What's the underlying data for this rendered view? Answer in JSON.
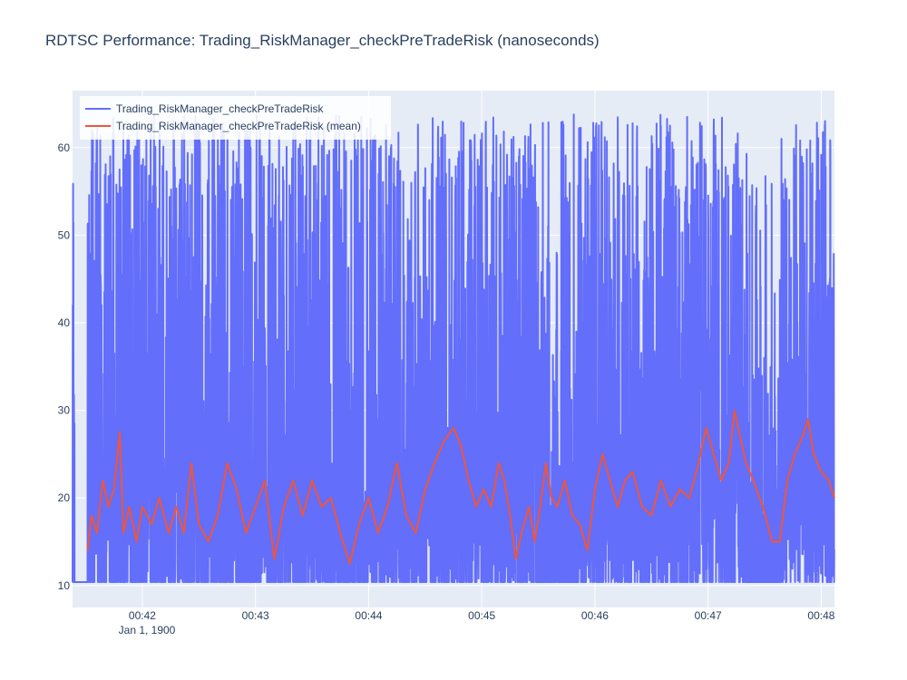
{
  "chart_data": {
    "type": "line",
    "title": "RDTSC Performance: Trading_RiskManager_checkPreTradeRisk (nanoseconds)",
    "xlabel": "",
    "ylabel": "",
    "x_range": [
      "00:41:23",
      "00:48:07"
    ],
    "x_ticks": [
      "00:42",
      "00:43",
      "00:44",
      "00:45",
      "00:46",
      "00:47",
      "00:48"
    ],
    "x_date_label": "Jan 1, 1900",
    "ylim": [
      7.5,
      66.5
    ],
    "y_ticks": [
      10,
      20,
      30,
      40,
      50,
      60
    ],
    "grid": true,
    "legend_position": "top-left",
    "series": [
      {
        "name": "Trading_RiskManager_checkPreTradeRisk",
        "color": "#636efa",
        "style": "noisy raw samples",
        "baseline": 10.4,
        "peak_levels": [
          22,
          26,
          30,
          34,
          37,
          41,
          45,
          48,
          52,
          56,
          58,
          61,
          63.8
        ],
        "bursts": [
          {
            "start": "00:41:23",
            "end": "00:41:24",
            "intensity": 0.6
          },
          {
            "start": "00:41:31",
            "end": "00:45:29",
            "intensity": 0.8
          },
          {
            "start": "00:45:29",
            "end": "00:45:54",
            "intensity": 0.5
          },
          {
            "start": "00:45:54",
            "end": "00:47:21",
            "intensity": 0.85
          },
          {
            "start": "00:47:21",
            "end": "00:47:38",
            "intensity": 0.35
          },
          {
            "start": "00:47:38",
            "end": "00:48:07",
            "intensity": 0.9
          }
        ]
      },
      {
        "name": "Trading_RiskManager_checkPreTradeRisk (mean)",
        "color": "#ef553b",
        "style": "rolling mean",
        "points": [
          [
            "00:41:31",
            14
          ],
          [
            "00:41:33",
            18
          ],
          [
            "00:41:36",
            16
          ],
          [
            "00:41:39",
            22
          ],
          [
            "00:41:42",
            19
          ],
          [
            "00:41:45",
            21
          ],
          [
            "00:41:48",
            27.5
          ],
          [
            "00:41:50",
            16
          ],
          [
            "00:41:53",
            19
          ],
          [
            "00:41:57",
            15
          ],
          [
            "00:42:00",
            19
          ],
          [
            "00:42:05",
            17
          ],
          [
            "00:42:09",
            20
          ],
          [
            "00:42:14",
            16
          ],
          [
            "00:42:18",
            19
          ],
          [
            "00:42:22",
            16
          ],
          [
            "00:42:26",
            24
          ],
          [
            "00:42:30",
            17
          ],
          [
            "00:42:35",
            15
          ],
          [
            "00:42:40",
            18
          ],
          [
            "00:42:45",
            24
          ],
          [
            "00:42:50",
            21
          ],
          [
            "00:42:55",
            16
          ],
          [
            "00:43:00",
            19
          ],
          [
            "00:43:05",
            22
          ],
          [
            "00:43:10",
            13
          ],
          [
            "00:43:15",
            19
          ],
          [
            "00:43:20",
            22
          ],
          [
            "00:43:25",
            18
          ],
          [
            "00:43:30",
            22
          ],
          [
            "00:43:35",
            19
          ],
          [
            "00:43:40",
            20
          ],
          [
            "00:43:45",
            16
          ],
          [
            "00:43:50",
            12.5
          ],
          [
            "00:43:55",
            17
          ],
          [
            "00:44:00",
            20
          ],
          [
            "00:44:05",
            16
          ],
          [
            "00:44:10",
            19
          ],
          [
            "00:44:15",
            24
          ],
          [
            "00:44:20",
            18
          ],
          [
            "00:44:25",
            16
          ],
          [
            "00:44:30",
            21
          ],
          [
            "00:44:35",
            24
          ],
          [
            "00:44:40",
            26.5
          ],
          [
            "00:44:45",
            28
          ],
          [
            "00:44:49",
            26
          ],
          [
            "00:44:53",
            22
          ],
          [
            "00:44:57",
            19
          ],
          [
            "00:45:01",
            21
          ],
          [
            "00:45:05",
            19
          ],
          [
            "00:45:09",
            24
          ],
          [
            "00:45:12",
            22
          ],
          [
            "00:45:15",
            18
          ],
          [
            "00:45:18",
            13
          ],
          [
            "00:45:21",
            16
          ],
          [
            "00:45:25",
            19
          ],
          [
            "00:45:28",
            15
          ],
          [
            "00:45:31",
            19
          ],
          [
            "00:45:34",
            24
          ],
          [
            "00:45:37",
            20
          ],
          [
            "00:45:40",
            19
          ],
          [
            "00:45:44",
            22
          ],
          [
            "00:45:48",
            18
          ],
          [
            "00:45:52",
            17
          ],
          [
            "00:45:56",
            14
          ],
          [
            "00:46:00",
            21
          ],
          [
            "00:46:04",
            25
          ],
          [
            "00:46:08",
            22
          ],
          [
            "00:46:12",
            19
          ],
          [
            "00:46:16",
            22
          ],
          [
            "00:46:20",
            23
          ],
          [
            "00:46:25",
            19
          ],
          [
            "00:46:30",
            18
          ],
          [
            "00:46:35",
            22
          ],
          [
            "00:46:40",
            19
          ],
          [
            "00:46:45",
            21
          ],
          [
            "00:46:50",
            20
          ],
          [
            "00:46:55",
            24
          ],
          [
            "00:46:59",
            28
          ],
          [
            "00:47:03",
            25
          ],
          [
            "00:47:07",
            22
          ],
          [
            "00:47:11",
            24
          ],
          [
            "00:47:14",
            30
          ],
          [
            "00:47:17",
            27
          ],
          [
            "00:47:20",
            24
          ],
          [
            "00:47:24",
            22
          ],
          [
            "00:47:29",
            19
          ],
          [
            "00:47:34",
            15
          ],
          [
            "00:47:38",
            15
          ],
          [
            "00:47:42",
            22
          ],
          [
            "00:47:46",
            25
          ],
          [
            "00:47:50",
            27
          ],
          [
            "00:47:53",
            29
          ],
          [
            "00:47:56",
            25
          ],
          [
            "00:48:00",
            23
          ],
          [
            "00:48:04",
            22
          ],
          [
            "00:48:07",
            20
          ]
        ]
      }
    ]
  }
}
